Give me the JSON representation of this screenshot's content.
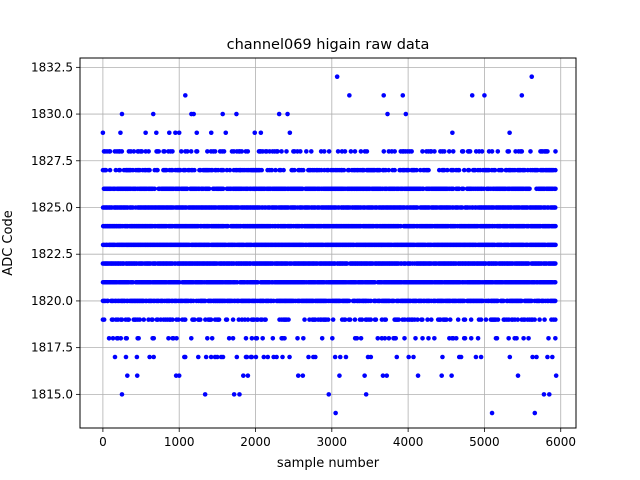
{
  "chart_data": {
    "type": "scatter",
    "title": "channel069 higain raw data",
    "xlabel": "sample number",
    "ylabel": "ADC Code",
    "xlim": [
      -300,
      6200
    ],
    "ylim": [
      1813.2,
      1833.0
    ],
    "xticks": [
      0,
      1000,
      2000,
      3000,
      4000,
      5000,
      6000
    ],
    "xtick_labels": [
      "0",
      "1000",
      "2000",
      "3000",
      "4000",
      "5000",
      "6000"
    ],
    "yticks": [
      1815.0,
      1817.5,
      1820.0,
      1822.5,
      1825.0,
      1827.5,
      1830.0,
      1832.5
    ],
    "ytick_labels": [
      "1815.0",
      "1817.5",
      "1820.0",
      "1822.5",
      "1825.0",
      "1827.5",
      "1830.0",
      "1832.5"
    ],
    "grid": true,
    "marker_color": "#0000ff",
    "x_range": [
      0,
      5940
    ],
    "dense_bands": [
      {
        "y": 1819,
        "density": 0.35
      },
      {
        "y": 1820,
        "density": 0.8
      },
      {
        "y": 1821,
        "density": 0.9
      },
      {
        "y": 1822,
        "density": 0.9
      },
      {
        "y": 1823,
        "density": 0.95
      },
      {
        "y": 1824,
        "density": 0.9
      },
      {
        "y": 1825,
        "density": 0.9
      },
      {
        "y": 1826,
        "density": 0.8
      },
      {
        "y": 1827,
        "density": 0.5
      },
      {
        "y": 1828,
        "density": 0.25
      },
      {
        "y": 1818,
        "density": 0.18
      },
      {
        "y": 1817,
        "density": 0.1
      }
    ],
    "sparse_points": [
      {
        "x": 0,
        "y": 1829
      },
      {
        "x": 230,
        "y": 1829
      },
      {
        "x": 250,
        "y": 1830
      },
      {
        "x": 560,
        "y": 1829
      },
      {
        "x": 660,
        "y": 1830
      },
      {
        "x": 700,
        "y": 1829
      },
      {
        "x": 870,
        "y": 1829
      },
      {
        "x": 950,
        "y": 1829
      },
      {
        "x": 1000,
        "y": 1829
      },
      {
        "x": 1080,
        "y": 1831
      },
      {
        "x": 1160,
        "y": 1830
      },
      {
        "x": 1190,
        "y": 1830
      },
      {
        "x": 1230,
        "y": 1829
      },
      {
        "x": 1420,
        "y": 1829
      },
      {
        "x": 1570,
        "y": 1830
      },
      {
        "x": 1610,
        "y": 1829
      },
      {
        "x": 1750,
        "y": 1830
      },
      {
        "x": 1990,
        "y": 1829
      },
      {
        "x": 2070,
        "y": 1829
      },
      {
        "x": 2310,
        "y": 1830
      },
      {
        "x": 2420,
        "y": 1830
      },
      {
        "x": 2450,
        "y": 1829
      },
      {
        "x": 3070,
        "y": 1832
      },
      {
        "x": 3230,
        "y": 1831
      },
      {
        "x": 3680,
        "y": 1831
      },
      {
        "x": 3730,
        "y": 1830
      },
      {
        "x": 3930,
        "y": 1831
      },
      {
        "x": 3970,
        "y": 1830
      },
      {
        "x": 4840,
        "y": 1831
      },
      {
        "x": 5000,
        "y": 1831
      },
      {
        "x": 5490,
        "y": 1831
      },
      {
        "x": 5620,
        "y": 1832
      },
      {
        "x": 4580,
        "y": 1829
      },
      {
        "x": 5330,
        "y": 1829
      },
      {
        "x": 250,
        "y": 1815
      },
      {
        "x": 1340,
        "y": 1815
      },
      {
        "x": 1720,
        "y": 1815
      },
      {
        "x": 1790,
        "y": 1815
      },
      {
        "x": 2960,
        "y": 1815
      },
      {
        "x": 3450,
        "y": 1815
      },
      {
        "x": 3050,
        "y": 1814
      },
      {
        "x": 5100,
        "y": 1814
      },
      {
        "x": 5660,
        "y": 1814
      },
      {
        "x": 5780,
        "y": 1815
      },
      {
        "x": 5850,
        "y": 1815
      },
      {
        "x": 320,
        "y": 1816
      },
      {
        "x": 450,
        "y": 1816
      },
      {
        "x": 960,
        "y": 1816
      },
      {
        "x": 1000,
        "y": 1816
      },
      {
        "x": 1840,
        "y": 1816
      },
      {
        "x": 1900,
        "y": 1816
      },
      {
        "x": 2560,
        "y": 1816
      },
      {
        "x": 2620,
        "y": 1816
      },
      {
        "x": 3100,
        "y": 1816
      },
      {
        "x": 3430,
        "y": 1816
      },
      {
        "x": 3670,
        "y": 1816
      },
      {
        "x": 3720,
        "y": 1816
      },
      {
        "x": 4130,
        "y": 1816
      },
      {
        "x": 4440,
        "y": 1816
      },
      {
        "x": 4570,
        "y": 1816
      },
      {
        "x": 5440,
        "y": 1816
      },
      {
        "x": 5940,
        "y": 1816
      }
    ]
  }
}
